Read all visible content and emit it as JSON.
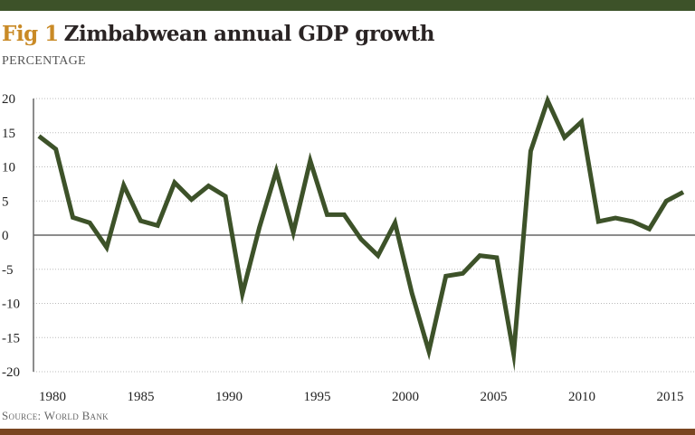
{
  "header": {
    "fig_label": "Fig 1",
    "title": "Zimbabwean annual GDP growth",
    "subtitle": "PERCENTAGE"
  },
  "footer": {
    "source": "Source: World Bank"
  },
  "colors": {
    "line": "#3d5229",
    "top_bar": "#3d5229",
    "bottom_bar": "#7a4520",
    "fig_label": "#c98a26"
  },
  "chart_data": {
    "type": "line",
    "title": "Zimbabwean annual GDP growth",
    "ylabel": "PERCENTAGE",
    "ylim": [
      -20,
      20
    ],
    "yticks": [
      20,
      15,
      10,
      5,
      0,
      -5,
      -10,
      -15,
      -20
    ],
    "xticks": [
      "1980",
      "1985",
      "1990",
      "1995",
      "2000",
      "2005",
      "2010",
      "2015"
    ],
    "grid": "horizontal dotted",
    "x": [
      1980,
      1981,
      1982,
      1983,
      1984,
      1985,
      1986,
      1987,
      1988,
      1989,
      1990,
      1991,
      1992,
      1993,
      1994,
      1995,
      1996,
      1997,
      1998,
      1999,
      2000,
      2001,
      2002,
      2003,
      2004,
      2005,
      2006,
      2007,
      2008,
      2009,
      2010,
      2011,
      2012,
      2013,
      2014,
      2015,
      2016,
      2017,
      2018
    ],
    "values": [
      14.5,
      12.6,
      2.6,
      1.8,
      -1.8,
      7.3,
      2.1,
      1.4,
      7.7,
      5.2,
      7.2,
      5.7,
      -8.6,
      1.1,
      9.4,
      0.4,
      10.9,
      3.0,
      3.0,
      -0.6,
      -3.0,
      1.8,
      -8.5,
      -17.0,
      -6.0,
      -5.6,
      -3.0,
      -3.3,
      -17.4,
      12.3,
      19.7,
      14.3,
      16.6,
      2.0,
      2.5,
      2.0,
      0.9,
      5.0,
      6.3
    ]
  }
}
